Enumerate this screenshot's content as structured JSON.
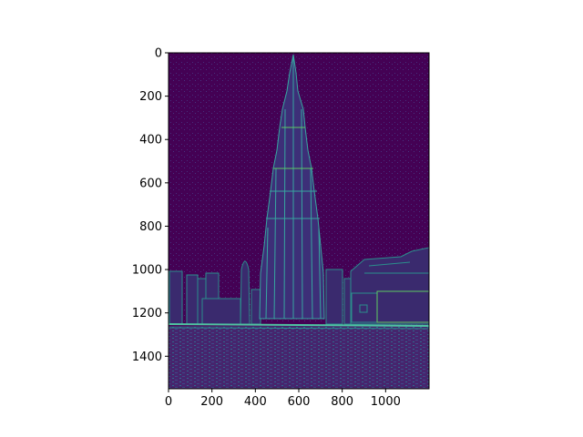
{
  "figure": {
    "type": "image",
    "colormap": "viridis",
    "image_width": 1200,
    "image_height": 1550,
    "subject": "edge-filtered cityscape with tall tower",
    "xlim": [
      0,
      1200
    ],
    "ylim": [
      1550,
      0
    ],
    "x_ticks": [
      {
        "value": 0,
        "label": "0"
      },
      {
        "value": 200,
        "label": "200"
      },
      {
        "value": 400,
        "label": "400"
      },
      {
        "value": 600,
        "label": "600"
      },
      {
        "value": 800,
        "label": "800"
      },
      {
        "value": 1000,
        "label": "1000"
      }
    ],
    "y_ticks": [
      {
        "value": 0,
        "label": "0"
      },
      {
        "value": 200,
        "label": "200"
      },
      {
        "value": 400,
        "label": "400"
      },
      {
        "value": 600,
        "label": "600"
      },
      {
        "value": 800,
        "label": "800"
      },
      {
        "value": 1000,
        "label": "1000"
      },
      {
        "value": 1200,
        "label": "1200"
      },
      {
        "value": 1400,
        "label": "1400"
      }
    ],
    "colors": {
      "background": "#440154",
      "edge_dim": "#3b528b",
      "edge_mid": "#21918c",
      "edge_bright": "#5ec962",
      "frame": "#000000"
    }
  }
}
